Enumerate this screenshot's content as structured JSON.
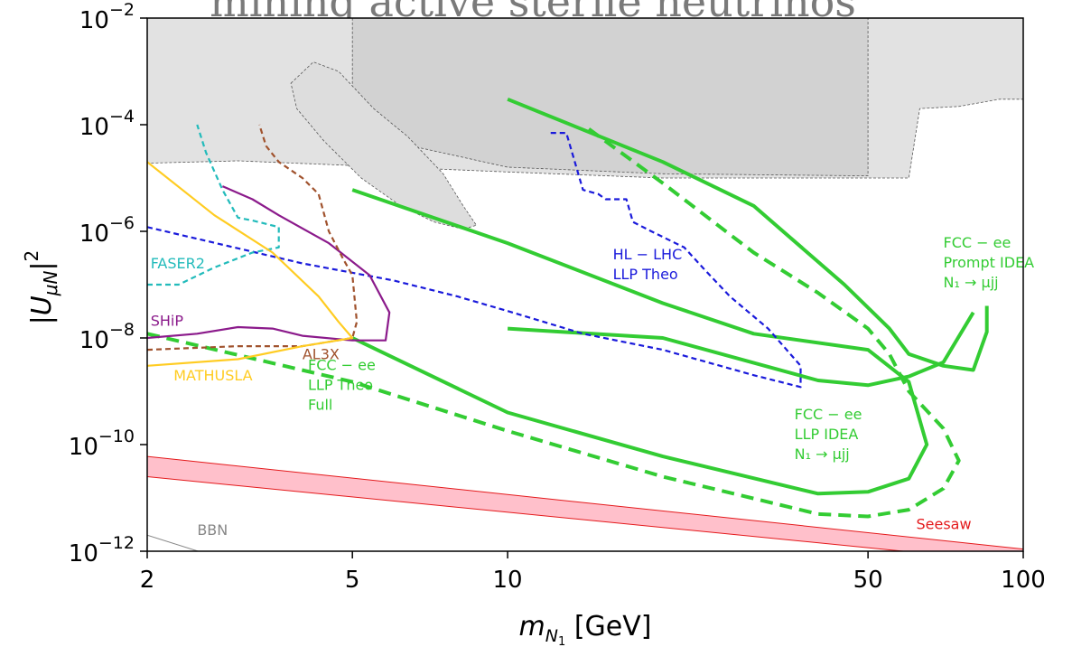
{
  "top_title_fragment": "mining active sterile neutrinos",
  "colors": {
    "green": "#33cc33",
    "blue": "#1a1adb",
    "cyan": "#22bbbb",
    "purple": "#8b1a8b",
    "brown": "#a0522d",
    "gold": "#ffcc22",
    "red": "#e41a1c",
    "seesaw_fill": "#ffc0cb",
    "bbn": "#888888"
  },
  "chart_data": {
    "type": "line",
    "title": "",
    "xlabel_main": "m",
    "xlabel_sub": "N",
    "xlabel_subsub": "1",
    "xlabel_unit": "[GeV]",
    "ylabel": "|U_μN|²",
    "x_scale": "log",
    "y_scale": "log",
    "xlim": [
      2,
      100
    ],
    "ylim": [
      1e-12,
      0.01
    ],
    "x_ticks": [
      {
        "value": 2,
        "label": "2"
      },
      {
        "value": 5,
        "label": "5"
      },
      {
        "value": 10,
        "label": "10"
      },
      {
        "value": 50,
        "label": "50"
      },
      {
        "value": 100,
        "label": "100"
      }
    ],
    "y_ticks": [
      {
        "value": 1e-12,
        "base": "10",
        "exp": "−12"
      },
      {
        "value": 1e-10,
        "base": "10",
        "exp": "−10"
      },
      {
        "value": 1e-08,
        "base": "10",
        "exp": "−8"
      },
      {
        "value": 1e-06,
        "base": "10",
        "exp": "−6"
      },
      {
        "value": 0.0001,
        "base": "10",
        "exp": "−4"
      },
      {
        "value": 0.01,
        "base": "10",
        "exp": "−2"
      }
    ],
    "excluded_regions": [
      {
        "id": "existing-limits",
        "color": "#e2e2e2",
        "points": [
          [
            2,
            0.01
          ],
          [
            2,
            1.9e-05
          ],
          [
            3,
            2.1e-05
          ],
          [
            6,
            1.6e-05
          ],
          [
            10,
            1.3e-05
          ],
          [
            20,
            1e-05
          ],
          [
            60,
            1e-05
          ],
          [
            63,
            0.0002
          ],
          [
            75,
            0.00022
          ],
          [
            90,
            0.0003
          ],
          [
            100,
            0.0003
          ],
          [
            100,
            0.01
          ]
        ]
      },
      {
        "id": "dark-box",
        "color": "#d2d2d2",
        "points": [
          [
            5,
            0.01
          ],
          [
            50,
            0.01
          ],
          [
            50,
            1.1e-05
          ],
          [
            20,
            1.2e-05
          ],
          [
            10,
            1.6e-05
          ],
          [
            5,
            7e-05
          ]
        ]
      },
      {
        "id": "bubble",
        "color": "#dddddd",
        "points": [
          [
            3.8,
            0.0006
          ],
          [
            4.2,
            0.0015
          ],
          [
            4.7,
            0.001
          ],
          [
            5.5,
            0.0002
          ],
          [
            6.4,
            6e-05
          ],
          [
            7.5,
            1.2e-05
          ],
          [
            8.2,
            3e-06
          ],
          [
            8.7,
            1.3e-06
          ],
          [
            8.2,
            1.1e-06
          ],
          [
            7.2,
            1.5e-06
          ],
          [
            6.2,
            3e-06
          ],
          [
            5.2,
            1e-05
          ],
          [
            4.4,
            5e-05
          ],
          [
            3.9,
            0.0002
          ]
        ]
      }
    ],
    "series": [
      {
        "id": "fcc-llp-idea",
        "color": "#33cc33",
        "dash": "solid",
        "width": 4,
        "points": [
          [
            5,
            1e-08
          ],
          [
            10,
            4e-10
          ],
          [
            20,
            6e-11
          ],
          [
            40,
            1.2e-11
          ],
          [
            50,
            1.3e-11
          ],
          [
            60,
            2.3e-11
          ],
          [
            65,
            1e-10
          ],
          [
            60,
            1.5e-09
          ],
          [
            50,
            6e-09
          ],
          [
            30,
            1.2e-08
          ],
          [
            20,
            4.5e-08
          ],
          [
            10,
            6e-07
          ],
          [
            5,
            6e-06
          ]
        ]
      },
      {
        "id": "fcc-prompt-idea",
        "color": "#33cc33",
        "dash": "solid",
        "width": 4,
        "points": [
          [
            10,
            0.0003
          ],
          [
            20,
            2e-05
          ],
          [
            30,
            3e-06
          ],
          [
            45,
            1e-07
          ],
          [
            55,
            1.5e-08
          ],
          [
            60,
            5e-09
          ],
          [
            70,
            3e-09
          ],
          [
            80,
            2.5e-09
          ],
          [
            85,
            1.3e-08
          ],
          [
            85,
            4e-08
          ]
        ]
      },
      {
        "id": "fcc-prompt-base",
        "color": "#33cc33",
        "dash": "solid",
        "width": 4,
        "points": [
          [
            10,
            1.5e-08
          ],
          [
            20,
            1e-08
          ],
          [
            40,
            1.6e-09
          ],
          [
            50,
            1.3e-09
          ],
          [
            60,
            1.9e-09
          ],
          [
            70,
            3.5e-09
          ],
          [
            80,
            3e-08
          ]
        ]
      },
      {
        "id": "fcc-llp-theo-full",
        "color": "#33cc33",
        "dash": "dashed",
        "width": 4,
        "points": [
          [
            2,
            1.2e-08
          ],
          [
            5,
            1.5e-09
          ],
          [
            10,
            1.8e-10
          ],
          [
            20,
            2.5e-11
          ],
          [
            40,
            5e-12
          ],
          [
            50,
            4.5e-12
          ],
          [
            60,
            6e-12
          ],
          [
            70,
            1.5e-11
          ],
          [
            75,
            5e-11
          ],
          [
            70,
            2e-10
          ],
          [
            60,
            1e-09
          ],
          [
            55,
            5e-09
          ],
          [
            50,
            1.5e-08
          ],
          [
            40,
            7e-08
          ],
          [
            30,
            4e-07
          ],
          [
            20,
            8e-06
          ],
          [
            14,
            0.0001
          ]
        ]
      },
      {
        "id": "hl-lhc-llp-theo",
        "color": "#1a1adb",
        "dash": "short",
        "width": 2.2,
        "points": [
          [
            2,
            1.2e-06
          ],
          [
            4,
            2.5e-07
          ],
          [
            6,
            1.2e-07
          ],
          [
            8,
            6e-08
          ],
          [
            10,
            3.2e-08
          ],
          [
            14,
            1.2e-08
          ],
          [
            20,
            6e-09
          ],
          [
            30,
            2e-09
          ],
          [
            37,
            1.2e-09
          ],
          [
            37,
            3e-09
          ],
          [
            32,
            1.5e-08
          ],
          [
            27,
            6e-08
          ],
          [
            24,
            2e-07
          ],
          [
            22,
            5e-07
          ],
          [
            19,
            1e-06
          ],
          [
            17.5,
            1.5e-06
          ],
          [
            17,
            4e-06
          ],
          [
            15.5,
            4e-06
          ],
          [
            15,
            5e-06
          ],
          [
            14,
            6e-06
          ],
          [
            13,
            7e-05
          ],
          [
            12,
            7e-05
          ]
        ]
      },
      {
        "id": "faser2",
        "color": "#22bbbb",
        "dash": "short",
        "width": 2.2,
        "points": [
          [
            2,
            1e-07
          ],
          [
            2.3,
            1e-07
          ],
          [
            2.7,
            2.1e-07
          ],
          [
            3.2,
            4e-07
          ],
          [
            3.6,
            5e-07
          ],
          [
            3.6,
            1.2e-06
          ],
          [
            3.2,
            1.6e-06
          ],
          [
            3.0,
            1.8e-06
          ],
          [
            2.8,
            6e-06
          ],
          [
            2.6,
            3e-05
          ],
          [
            2.5,
            0.0001
          ]
        ]
      },
      {
        "id": "ship",
        "color": "#8b1a8b",
        "dash": "solid",
        "width": 2.2,
        "points": [
          [
            2,
            1e-08
          ],
          [
            2.5,
            1.2e-08
          ],
          [
            3,
            1.6e-08
          ],
          [
            3.5,
            1.5e-08
          ],
          [
            4,
            1.1e-08
          ],
          [
            5,
            9e-09
          ],
          [
            5.8,
            9e-09
          ],
          [
            5.9,
            3e-08
          ],
          [
            5.4,
            1.5e-07
          ],
          [
            4.5,
            6e-07
          ],
          [
            3.6,
            2e-06
          ],
          [
            3.2,
            4e-06
          ],
          [
            2.8,
            7e-06
          ]
        ]
      },
      {
        "id": "al3x",
        "color": "#a0522d",
        "dash": "short",
        "width": 2.2,
        "points": [
          [
            2,
            6e-09
          ],
          [
            3,
            7e-09
          ],
          [
            4,
            7e-09
          ],
          [
            5,
            1e-08
          ],
          [
            5.1,
            2e-08
          ],
          [
            5.0,
            1.5e-07
          ],
          [
            4.8,
            3e-07
          ],
          [
            4.5,
            1e-06
          ],
          [
            4.3,
            5e-06
          ],
          [
            4.0,
            1e-05
          ],
          [
            3.6,
            2e-05
          ],
          [
            3.4,
            4e-05
          ],
          [
            3.3,
            0.0001
          ]
        ]
      },
      {
        "id": "mathusla",
        "color": "#ffcc22",
        "dash": "solid",
        "width": 2.2,
        "points": [
          [
            2,
            3e-09
          ],
          [
            3,
            4e-09
          ],
          [
            4,
            7e-09
          ],
          [
            5,
            1e-08
          ],
          [
            4.7,
            2e-08
          ],
          [
            4.3,
            6e-08
          ],
          [
            3.5,
            4e-07
          ],
          [
            2.7,
            2e-06
          ],
          [
            2,
            2e-05
          ]
        ]
      },
      {
        "id": "bbn",
        "color": "#888888",
        "dash": "solid",
        "width": 1,
        "points": [
          [
            2,
            2e-12
          ],
          [
            2.7,
            8e-13
          ]
        ]
      }
    ],
    "bands": [
      {
        "id": "seesaw",
        "edge_color": "#e41a1c",
        "fill_color": "#ffc0cb",
        "lower": [
          [
            2,
            2.5e-11
          ],
          [
            100,
            6e-13
          ]
        ],
        "upper": [
          [
            2,
            6e-11
          ],
          [
            100,
            1.1e-12
          ]
        ]
      }
    ],
    "annotations": [
      {
        "id": "fcc-prompt-label",
        "lines": [
          "FCC − ee",
          "Prompt IDEA",
          "N₁ → μjj"
        ],
        "color": "#33cc33",
        "x": 70,
        "y": 5e-07,
        "anchor": "start"
      },
      {
        "id": "fcc-llp-idea-label",
        "lines": [
          "FCC − ee",
          "LLP IDEA",
          "N₁ → μjj"
        ],
        "color": "#33cc33",
        "x": 36,
        "y": 3e-10,
        "anchor": "start"
      },
      {
        "id": "fcc-llp-theo-label",
        "lines": [
          "FCC − ee",
          "LLP Theo",
          "Full"
        ],
        "color": "#33cc33",
        "x": 4.1,
        "y": 2.5e-09,
        "anchor": "start"
      },
      {
        "id": "hl-lhc-label",
        "lines": [
          "HL − LHC",
          "LLP Theo"
        ],
        "color": "#1a1adb",
        "x": 16,
        "y": 3e-07,
        "anchor": "start"
      },
      {
        "id": "faser2-label",
        "lines": [
          "FASER2"
        ],
        "color": "#22bbbb",
        "x": 2.03,
        "y": 2e-07,
        "anchor": "start"
      },
      {
        "id": "ship-label",
        "lines": [
          "SHiP"
        ],
        "color": "#8b1a8b",
        "x": 2.03,
        "y": 1.7e-08,
        "anchor": "start"
      },
      {
        "id": "al3x-label",
        "lines": [
          "AL3X"
        ],
        "color": "#a0522d",
        "x": 4.0,
        "y": 4e-09,
        "anchor": "start"
      },
      {
        "id": "mathusla-label",
        "lines": [
          "MATHUSLA"
        ],
        "color": "#ffcc22",
        "x": 2.25,
        "y": 1.6e-09,
        "anchor": "start"
      },
      {
        "id": "seesaw-label",
        "lines": [
          "Seesaw"
        ],
        "color": "#e41a1c",
        "x": 62,
        "y": 2.6e-12,
        "anchor": "start"
      },
      {
        "id": "bbn-label",
        "lines": [
          "BBN"
        ],
        "color": "#888888",
        "x": 2.5,
        "y": 2e-12,
        "anchor": "start"
      }
    ]
  }
}
